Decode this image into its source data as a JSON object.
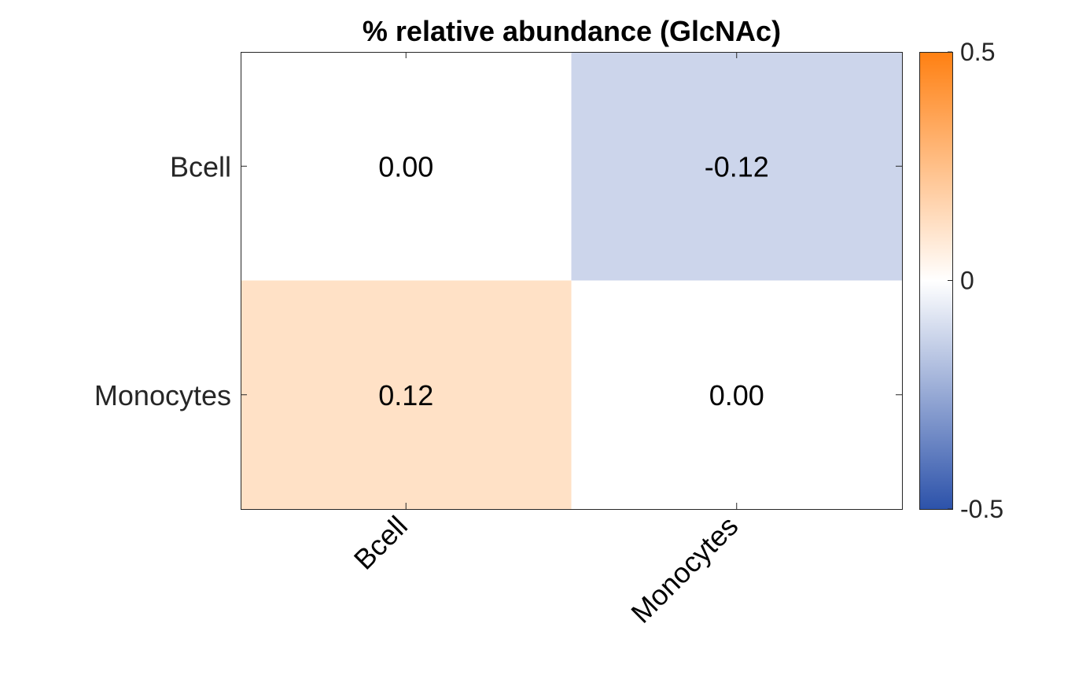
{
  "chart_data": {
    "type": "heatmap",
    "title": "% relative abundance (GlcNAc)",
    "x_categories": [
      "Bcell",
      "Monocytes"
    ],
    "y_categories": [
      "Bcell",
      "Monocytes"
    ],
    "values": [
      [
        0.0,
        -0.12
      ],
      [
        0.12,
        0.0
      ]
    ],
    "cell_labels": [
      [
        "0.00",
        "-0.12"
      ],
      [
        "0.12",
        "0.00"
      ]
    ],
    "colorbar": {
      "min": -0.5,
      "max": 0.5,
      "tick_labels": [
        "0.5",
        "0",
        "-0.5"
      ],
      "ticks": [
        0.5,
        0,
        -0.5
      ]
    },
    "colors": {
      "negative": "#2c52aa",
      "neutral": "#ffffff",
      "positive": "#ff8012"
    }
  }
}
